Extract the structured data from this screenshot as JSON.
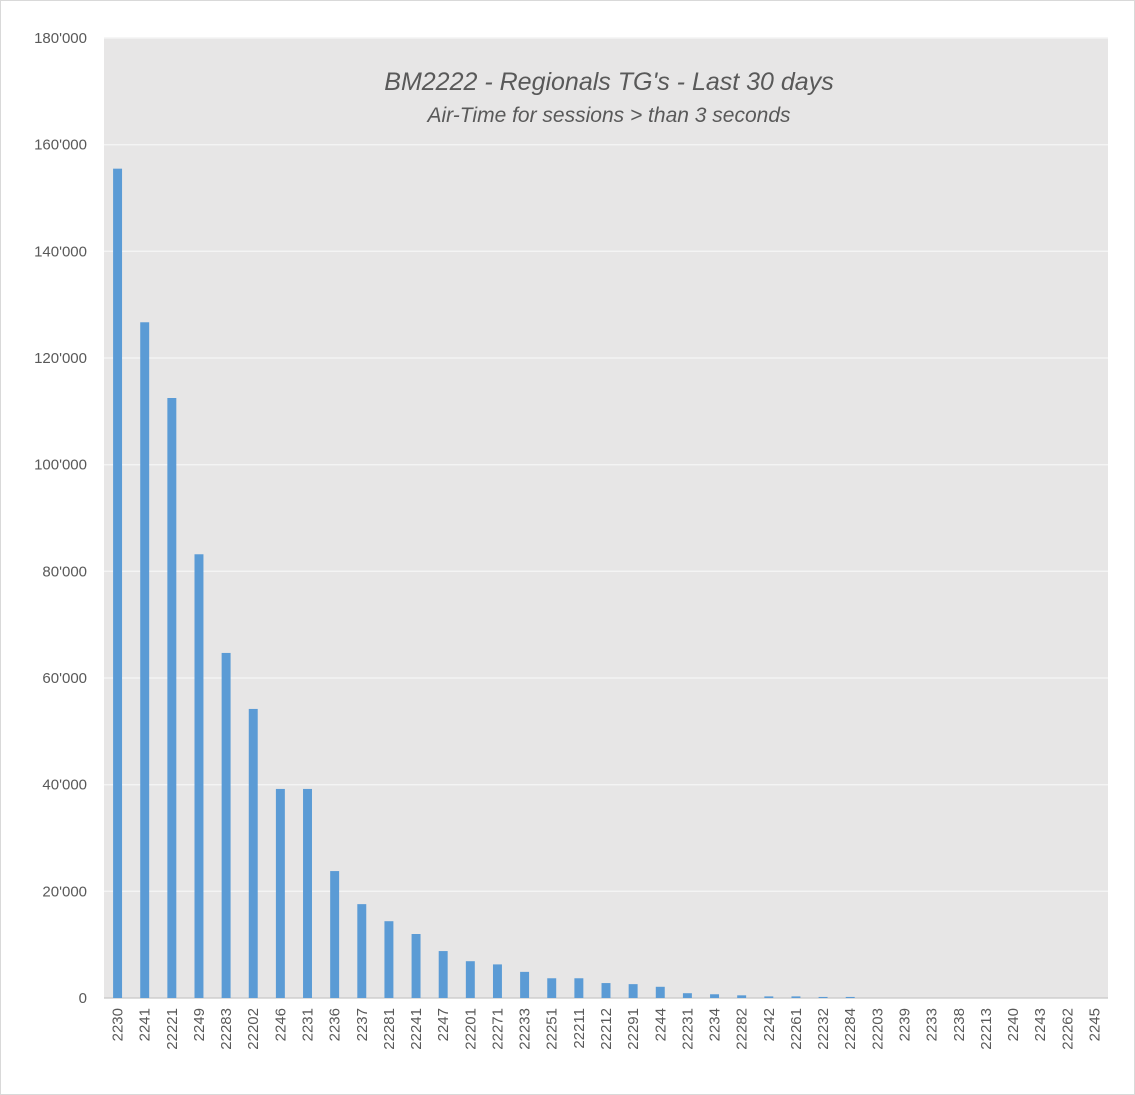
{
  "chart_data": {
    "type": "bar",
    "title": "BM2222 - Regionals TG's - Last 30 days",
    "subtitle": "Air-Time for sessions > than 3 seconds",
    "xlabel": "",
    "ylabel": "",
    "ylim": [
      0,
      180000
    ],
    "yticks": [
      "0",
      "20'000",
      "40'000",
      "60'000",
      "80'000",
      "100'000",
      "120'000",
      "140'000",
      "160'000",
      "180'000"
    ],
    "grid": true,
    "bar_color": "#5b9bd5",
    "plot_background": "#e7e6e6",
    "categories": [
      "2230",
      "2241",
      "22221",
      "2249",
      "22283",
      "22202",
      "2246",
      "2231",
      "2236",
      "2237",
      "22281",
      "22241",
      "2247",
      "22201",
      "22271",
      "22233",
      "22251",
      "22211",
      "22212",
      "22291",
      "2244",
      "22231",
      "2234",
      "22282",
      "2242",
      "22261",
      "22232",
      "22284",
      "22203",
      "2239",
      "2233",
      "2238",
      "22213",
      "2240",
      "2243",
      "22262",
      "2245"
    ],
    "values": [
      155500,
      126700,
      112500,
      83200,
      64700,
      54200,
      39200,
      39200,
      23800,
      17600,
      14400,
      12000,
      8800,
      6900,
      6300,
      4900,
      3700,
      3700,
      2800,
      2600,
      2100,
      900,
      700,
      500,
      300,
      300,
      200,
      200,
      0,
      0,
      0,
      0,
      0,
      0,
      0,
      0,
      0
    ]
  }
}
